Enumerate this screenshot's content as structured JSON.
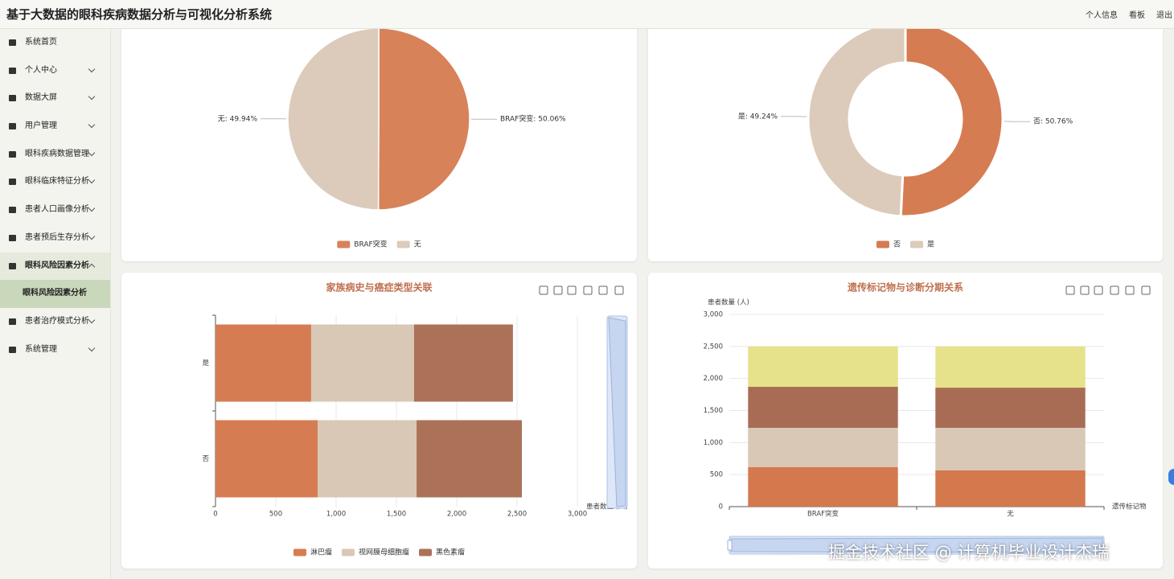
{
  "header": {
    "title": "基于大数据的眼科疾病数据分析与可视化分析系统",
    "links": [
      "个人信息",
      "看板",
      "退出"
    ]
  },
  "sidebar": {
    "items": [
      {
        "label": "系统首页"
      },
      {
        "label": "个人中心"
      },
      {
        "label": "数据大屏"
      },
      {
        "label": "用户管理"
      },
      {
        "label": "眼科疾病数据管理"
      },
      {
        "label": "眼科临床特征分析"
      },
      {
        "label": "患者人口画像分析"
      },
      {
        "label": "患者预后生存分析"
      },
      {
        "label": "眼科风险因素分析",
        "children": [
          "眼科风险因素分析"
        ]
      },
      {
        "label": "患者治疗模式分析"
      },
      {
        "label": "系统管理"
      }
    ]
  },
  "chart_data": [
    {
      "type": "pie",
      "categories": [
        "BRAF突变",
        "无"
      ],
      "values": [
        50.06,
        49.94
      ],
      "value_labels": [
        "BRAF突变: 50.06%",
        "无: 49.94%"
      ],
      "colors": [
        "#d8825a",
        "#dccbba"
      ]
    },
    {
      "type": "donut",
      "categories": [
        "否",
        "是"
      ],
      "values": [
        50.76,
        49.24
      ],
      "value_labels": [
        "否: 50.76%",
        "是: 49.24%"
      ],
      "colors": [
        "#d67c52",
        "#dccbba"
      ]
    },
    {
      "type": "hbar_stacked",
      "title": "家族病史与癌症类型关联",
      "categories": [
        "是",
        "否"
      ],
      "series": [
        {
          "name": "淋巴瘤",
          "color": "#d67c52",
          "values": [
            793,
            847
          ]
        },
        {
          "name": "视网膜母细胞瘤",
          "color": "#d9c8b6",
          "values": [
            853,
            820
          ]
        },
        {
          "name": "黑色素瘤",
          "color": "#ab7258",
          "values": [
            820,
            873
          ]
        }
      ],
      "xlim": [
        0,
        3000
      ],
      "xticks": [
        0,
        500,
        {
          "value": 1000,
          "label": "1,000"
        },
        {
          "value": 1500,
          "label": "1,500"
        },
        {
          "value": 2000,
          "label": "2,000"
        },
        {
          "value": 2500,
          "label": "2,500"
        },
        {
          "value": 3000,
          "label": "3,000"
        }
      ],
      "xlabel": "患者数量 (人)",
      "grid": true
    },
    {
      "type": "bar_stacked",
      "title": "遗传标记物与诊断分期关系",
      "categories": [
        "BRAF突变",
        "无"
      ],
      "series": [
        {
          "color": "#d4784e",
          "values": [
            615,
            565
          ]
        },
        {
          "color": "#d9c8b6",
          "values": [
            615,
            665
          ]
        },
        {
          "color": "#a86c55",
          "values": [
            640,
            627
          ]
        },
        {
          "color": "#e6e18b",
          "values": [
            630,
            643
          ]
        }
      ],
      "ylim": [
        0,
        3000
      ],
      "yticks": [
        0,
        500,
        {
          "value": 1000,
          "label": "1,000"
        },
        {
          "value": 1500,
          "label": "1,500"
        },
        {
          "value": 2000,
          "label": "2,000"
        },
        {
          "value": 2500,
          "label": "2,500"
        },
        {
          "value": 3000,
          "label": "3,000"
        }
      ],
      "ylabel": "患者数量 (人)",
      "xlabel": "遗传标记物",
      "grid": true
    }
  ],
  "watermark": "掘金技术社区 @ 计算机毕业设计杰瑞"
}
